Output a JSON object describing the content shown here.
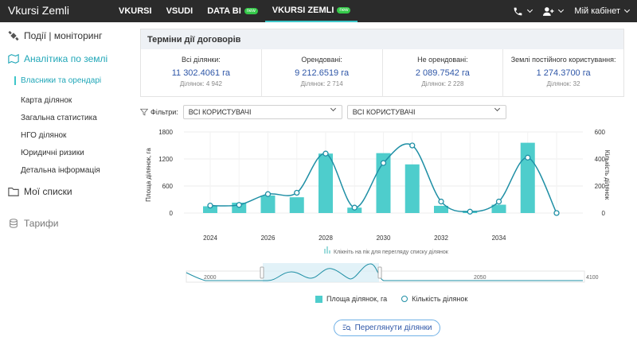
{
  "topbar": {
    "brand": "Vkursi Zemli",
    "nav": [
      {
        "label": "VKURSI",
        "badge": ""
      },
      {
        "label": "VSUDI",
        "badge": ""
      },
      {
        "label": "DATA BI",
        "badge": "new"
      },
      {
        "label": "VKURSI ZEMLI",
        "badge": "new"
      }
    ],
    "cabinet": "Мій кабінет",
    "icons": [
      "phone-icon",
      "user-add-icon"
    ]
  },
  "sidebar": {
    "events": "Події | моніторинг",
    "analytics": "Аналітика по землі",
    "items": [
      "Власники та орендарі",
      "Карта ділянок",
      "Загальна статистика",
      "НГО ділянок",
      "Юридичні ризики",
      "Детальна інформація"
    ],
    "my_lists": "Мої списки",
    "tariffs": "Тарифи"
  },
  "panel": {
    "title": "Терміни дії договорів",
    "stats": [
      {
        "label": "Всі ділянки:",
        "value": "11 302.4061 га",
        "sub": "Ділянок: 4 942"
      },
      {
        "label": "Орендовані:",
        "value": "9 212.6519 га",
        "sub": "Ділянок: 2 714"
      },
      {
        "label": "Не орендовані:",
        "value": "2 089.7542 га",
        "sub": "Ділянок: 2 228"
      },
      {
        "label": "Землі постійного користування:",
        "value": "1 274.3700 га",
        "sub": "Ділянок: 32"
      }
    ]
  },
  "filters": {
    "label": "Фільтри:",
    "select1": "ВСІ КОРИСТУВАЧІ",
    "select2": "ВСІ КОРИСТУВАЧІ"
  },
  "chart_data": {
    "type": "bar",
    "x": [
      2024,
      2025,
      2026,
      2027,
      2028,
      2029,
      2030,
      2031,
      2032,
      2033,
      2034,
      2035,
      2036
    ],
    "x_tick_labels": [
      "2024",
      "2026",
      "2028",
      "2030",
      "2032",
      "2034"
    ],
    "series": [
      {
        "name": "Площа ділянок, га",
        "kind": "bar",
        "values": [
          150,
          230,
          390,
          350,
          1320,
          120,
          1330,
          1080,
          160,
          50,
          185,
          1560,
          0
        ]
      },
      {
        "name": "Кількість ділянок",
        "kind": "line",
        "values": [
          55,
          60,
          140,
          150,
          440,
          40,
          370,
          500,
          85,
          10,
          85,
          410,
          0
        ]
      }
    ],
    "ylabel": "Площа ділянок, га",
    "y2label": "Кількість ділянок",
    "ylim": [
      0,
      1800
    ],
    "y_ticks": [
      "0",
      "600",
      "1200",
      "1800"
    ],
    "y2lim": [
      0,
      600
    ],
    "y2_ticks": [
      "0",
      "200",
      "400",
      "600"
    ],
    "hint": "Клікніть на пік для перегляду списку ділянок",
    "slider_labels": [
      "2000",
      "2050",
      "4100"
    ],
    "colors": {
      "bar": "#4ecdcc",
      "line": "#1f8fa5"
    },
    "legend_position": "bottom"
  },
  "button": {
    "label": "Переглянути ділянки"
  }
}
